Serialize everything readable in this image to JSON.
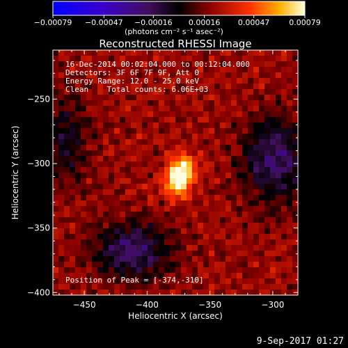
{
  "chart_data": {
    "type": "heatmap",
    "title": "Reconstructed RHESSI Image",
    "xlabel": "Heliocentric X (arcsec)",
    "ylabel": "Heliocentric Y (arcsec)",
    "xlim": [
      -475,
      -280
    ],
    "ylim": [
      -402,
      -212
    ],
    "x_ticks": [
      -450,
      -400,
      -350,
      -300
    ],
    "x_tick_labels": [
      "−450",
      "−400",
      "−350",
      "−300"
    ],
    "y_ticks": [
      -400,
      -350,
      -300,
      -250
    ],
    "y_tick_labels": [
      "−400",
      "−350",
      "−300",
      "−250"
    ],
    "colorbar": {
      "range": [
        -0.00079,
        0.00079
      ],
      "ticks": [
        -0.00079,
        -0.00047,
        -0.00016,
        0.00016,
        0.00047,
        0.00079
      ],
      "tick_labels": [
        "−0.00079",
        "−0.00047",
        "−0.00016",
        "0.00016",
        "0.00047",
        "0.00079"
      ],
      "units_label": "(photons cm⁻² s⁻¹ asec⁻²)"
    },
    "source": {
      "peak_x": -374,
      "peak_y": -310
    },
    "annotations": {
      "line1": "16-Dec-2014 00:02:04.000 to 00:12:04.000",
      "line2": "Detectors: 3F 6F 7F 9F, Att 0",
      "line3": "Energy Range: 12.0 - 25.0 keV",
      "line4": "Clean    Total counts: 6.06E+03",
      "peak": "Position of Peak = [-374,-310]"
    }
  },
  "footer": {
    "timestamp": "9-Sep-2017 01:27"
  }
}
